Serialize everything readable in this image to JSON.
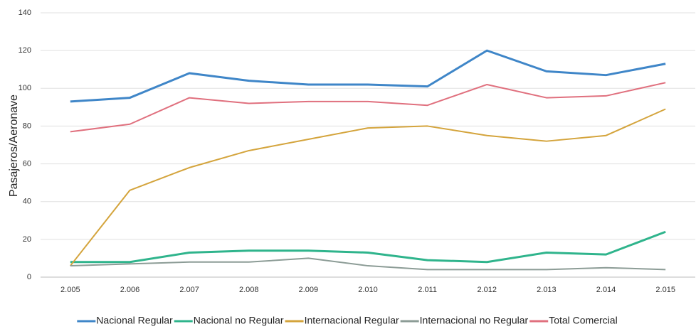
{
  "chart_data": {
    "type": "line",
    "y_label": "Pasajeros/Aeronave",
    "categories": [
      "2.005",
      "2.006",
      "2.007",
      "2.008",
      "2.009",
      "2.010",
      "2.011",
      "2.012",
      "2.013",
      "2.014",
      "2.015"
    ],
    "series": [
      {
        "name": "Nacional Regular",
        "color": "#3f86c8",
        "line_width": 3,
        "values": [
          93,
          95,
          108,
          104,
          102,
          102,
          101,
          120,
          109,
          107,
          113
        ]
      },
      {
        "name": "Nacional no Regular",
        "color": "#2fb48c",
        "line_width": 3,
        "values": [
          8,
          8,
          13,
          14,
          14,
          13,
          9,
          8,
          13,
          12,
          24
        ]
      },
      {
        "name": "Internacional Regular",
        "color": "#d4a43c",
        "line_width": 2,
        "values": [
          6,
          46,
          58,
          67,
          73,
          79,
          80,
          75,
          72,
          75,
          89
        ]
      },
      {
        "name": "Internacional no Regular",
        "color": "#8c9c96",
        "line_width": 2,
        "values": [
          6,
          7,
          8,
          8,
          10,
          6,
          4,
          4,
          4,
          5,
          4
        ]
      },
      {
        "name": "Total Comercial",
        "color": "#e0707e",
        "line_width": 2,
        "values": [
          77,
          81,
          95,
          92,
          93,
          93,
          91,
          102,
          95,
          96,
          103
        ]
      }
    ],
    "ylim": [
      0,
      140
    ],
    "yticks": [
      0,
      20,
      40,
      60,
      80,
      100,
      120,
      140
    ],
    "grid": true,
    "legend": "bottom"
  }
}
